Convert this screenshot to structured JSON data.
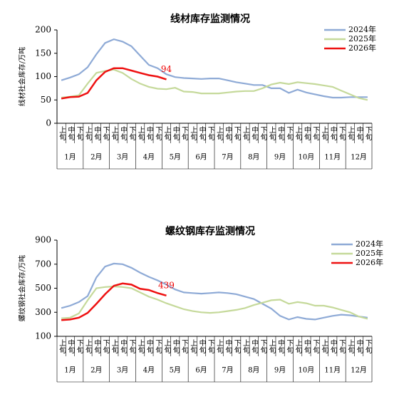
{
  "chart_data": [
    {
      "type": "line",
      "title": "线材库存监测情况",
      "ylabel": "线材社会库存/万吨",
      "categories": [
        "上旬",
        "中旬",
        "下旬",
        "上旬",
        "中旬",
        "下旬",
        "上旬",
        "中旬",
        "下旬",
        "上旬",
        "中旬",
        "下旬",
        "上旬",
        "中旬",
        "下旬",
        "上旬",
        "中旬",
        "下旬",
        "上旬",
        "中旬",
        "下旬",
        "上旬",
        "中旬",
        "下旬",
        "上旬",
        "中旬",
        "下旬",
        "上旬",
        "中旬",
        "下旬",
        "上旬",
        "中旬",
        "下旬",
        "上旬",
        "中旬",
        "下旬"
      ],
      "groups": [
        "1月",
        "2月",
        "3月",
        "4月",
        "5月",
        "6月",
        "7月",
        "8月",
        "9月",
        "10月",
        "11月",
        "12月"
      ],
      "ylim": [
        0,
        200
      ],
      "yticks": [
        0,
        50,
        100,
        150,
        200
      ],
      "legend": "upper right",
      "series": [
        {
          "name": "2024年",
          "color": "#8eaad6",
          "values": [
            92,
            98,
            105,
            120,
            148,
            172,
            180,
            175,
            165,
            145,
            125,
            118,
            105,
            99,
            97,
            96,
            95,
            96,
            96,
            92,
            88,
            85,
            82,
            82,
            75,
            75,
            65,
            72,
            66,
            62,
            58,
            55,
            55,
            56,
            56,
            56
          ]
        },
        {
          "name": "2025年",
          "color": "#c5d99a",
          "values": [
            55,
            57,
            60,
            85,
            108,
            112,
            115,
            108,
            95,
            85,
            78,
            74,
            73,
            76,
            68,
            67,
            64,
            64,
            64,
            66,
            68,
            69,
            69,
            75,
            83,
            87,
            84,
            88,
            86,
            84,
            81,
            78,
            70,
            62,
            54,
            50
          ]
        },
        {
          "name": "2026年",
          "color": "#ee1111",
          "labeled_points": [
            12
          ],
          "values": [
            53,
            56,
            57,
            65,
            92,
            110,
            118,
            118,
            113,
            108,
            103,
            100,
            94,
            null,
            null,
            null,
            null,
            null,
            null,
            null,
            null,
            null,
            null,
            null,
            null,
            null,
            null,
            null,
            null,
            null,
            null,
            null,
            null,
            null,
            null,
            null
          ]
        }
      ]
    },
    {
      "type": "line",
      "title": "螺纹钢库存监测情况",
      "ylabel": "螺纹钢社会库存/万吨",
      "categories": [
        "上旬",
        "中旬",
        "下旬",
        "上旬",
        "中旬",
        "下旬",
        "上旬",
        "中旬",
        "下旬",
        "上旬",
        "中旬",
        "下旬",
        "上旬",
        "中旬",
        "下旬",
        "上旬",
        "中旬",
        "下旬",
        "上旬",
        "中旬",
        "下旬",
        "上旬",
        "中旬",
        "下旬",
        "上旬",
        "中旬",
        "下旬",
        "上旬",
        "中旬",
        "下旬",
        "上旬",
        "中旬",
        "下旬",
        "上旬",
        "中旬",
        "下旬"
      ],
      "groups": [
        "1月",
        "2月",
        "3月",
        "4月",
        "5月",
        "6月",
        "7月",
        "8月",
        "9月",
        "10月",
        "11月",
        "12月"
      ],
      "ylim": [
        100,
        900
      ],
      "yticks": [
        100,
        300,
        500,
        700,
        900
      ],
      "legend": "upper right",
      "series": [
        {
          "name": "2024年",
          "color": "#8eaad6",
          "values": [
            335,
            355,
            385,
            435,
            590,
            680,
            705,
            700,
            670,
            630,
            595,
            565,
            530,
            490,
            465,
            460,
            455,
            460,
            465,
            460,
            450,
            430,
            410,
            370,
            330,
            270,
            240,
            260,
            245,
            240,
            255,
            270,
            280,
            275,
            265,
            255
          ]
        },
        {
          "name": "2025年",
          "color": "#c5d99a",
          "values": [
            250,
            255,
            290,
            400,
            500,
            510,
            515,
            510,
            500,
            465,
            430,
            405,
            375,
            350,
            325,
            310,
            300,
            295,
            300,
            310,
            320,
            335,
            360,
            380,
            400,
            405,
            370,
            385,
            375,
            355,
            355,
            340,
            320,
            300,
            265,
            245
          ]
        },
        {
          "name": "2026年",
          "color": "#ee1111",
          "labeled_points": [
            12
          ],
          "values": [
            235,
            240,
            255,
            295,
            370,
            450,
            520,
            540,
            530,
            495,
            485,
            460,
            439,
            null,
            null,
            null,
            null,
            null,
            null,
            null,
            null,
            null,
            null,
            null,
            null,
            null,
            null,
            null,
            null,
            null,
            null,
            null,
            null,
            null,
            null,
            null
          ]
        }
      ]
    }
  ]
}
